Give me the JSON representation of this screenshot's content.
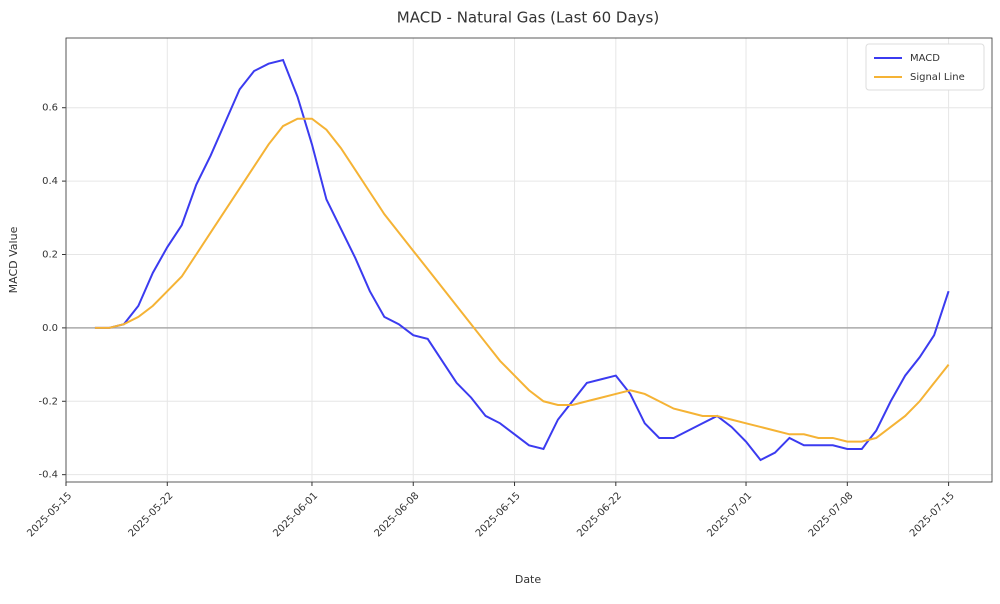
{
  "chart_data": {
    "type": "line",
    "title": "MACD - Natural Gas (Last 60 Days)",
    "xlabel": "Date",
    "ylabel": "MACD Value",
    "x": [
      "2025-05-17",
      "2025-05-18",
      "2025-05-19",
      "2025-05-20",
      "2025-05-21",
      "2025-05-22",
      "2025-05-23",
      "2025-05-24",
      "2025-05-25",
      "2025-05-26",
      "2025-05-27",
      "2025-05-28",
      "2025-05-29",
      "2025-05-30",
      "2025-05-31",
      "2025-06-01",
      "2025-06-02",
      "2025-06-03",
      "2025-06-04",
      "2025-06-05",
      "2025-06-06",
      "2025-06-07",
      "2025-06-08",
      "2025-06-09",
      "2025-06-10",
      "2025-06-11",
      "2025-06-12",
      "2025-06-13",
      "2025-06-14",
      "2025-06-15",
      "2025-06-16",
      "2025-06-17",
      "2025-06-18",
      "2025-06-19",
      "2025-06-20",
      "2025-06-21",
      "2025-06-22",
      "2025-06-23",
      "2025-06-24",
      "2025-06-25",
      "2025-06-26",
      "2025-06-27",
      "2025-06-28",
      "2025-06-29",
      "2025-06-30",
      "2025-07-01",
      "2025-07-02",
      "2025-07-03",
      "2025-07-04",
      "2025-07-05",
      "2025-07-06",
      "2025-07-07",
      "2025-07-08",
      "2025-07-09",
      "2025-07-10",
      "2025-07-11",
      "2025-07-12",
      "2025-07-13",
      "2025-07-14",
      "2025-07-15"
    ],
    "series": [
      {
        "name": "MACD",
        "color": "#3b3bf0",
        "values": [
          0,
          0,
          0.01,
          0.06,
          0.15,
          0.22,
          0.28,
          0.39,
          0.47,
          0.56,
          0.65,
          0.7,
          0.72,
          0.73,
          0.63,
          0.5,
          0.35,
          0.27,
          0.19,
          0.1,
          0.03,
          0.01,
          -0.02,
          -0.03,
          -0.09,
          -0.15,
          -0.19,
          -0.24,
          -0.26,
          -0.29,
          -0.32,
          -0.33,
          -0.25,
          -0.2,
          -0.15,
          -0.14,
          -0.13,
          -0.18,
          -0.26,
          -0.3,
          -0.3,
          -0.28,
          -0.26,
          -0.24,
          -0.27,
          -0.31,
          -0.36,
          -0.34,
          -0.3,
          -0.32,
          -0.32,
          -0.32,
          -0.33,
          -0.33,
          -0.28,
          -0.2,
          -0.13,
          -0.08,
          -0.02,
          0.1
        ]
      },
      {
        "name": "Signal Line",
        "color": "#f5b335",
        "values": [
          0,
          0,
          0.01,
          0.03,
          0.06,
          0.1,
          0.14,
          0.2,
          0.26,
          0.32,
          0.38,
          0.44,
          0.5,
          0.55,
          0.57,
          0.57,
          0.54,
          0.49,
          0.43,
          0.37,
          0.31,
          0.26,
          0.21,
          0.16,
          0.11,
          0.06,
          0.01,
          -0.04,
          -0.09,
          -0.13,
          -0.17,
          -0.2,
          -0.21,
          -0.21,
          -0.2,
          -0.19,
          -0.18,
          -0.17,
          -0.18,
          -0.2,
          -0.22,
          -0.23,
          -0.24,
          -0.24,
          -0.25,
          -0.26,
          -0.27,
          -0.28,
          -0.29,
          -0.29,
          -0.3,
          -0.3,
          -0.31,
          -0.31,
          -0.3,
          -0.27,
          -0.24,
          -0.2,
          -0.15,
          -0.1
        ]
      }
    ],
    "xlim": [
      "2025-05-15",
      "2025-07-18"
    ],
    "xticks": [
      "2025-05-15",
      "2025-05-22",
      "2025-06-01",
      "2025-06-08",
      "2025-06-15",
      "2025-06-22",
      "2025-07-01",
      "2025-07-08",
      "2025-07-15"
    ],
    "ylim": [
      -0.42,
      0.79
    ],
    "yticks": [
      -0.4,
      -0.2,
      {
        "value": 0,
        "label": "0.0"
      },
      0.2,
      0.4,
      0.6
    ],
    "hline": 0,
    "grid": true,
    "legend": "upper right"
  }
}
